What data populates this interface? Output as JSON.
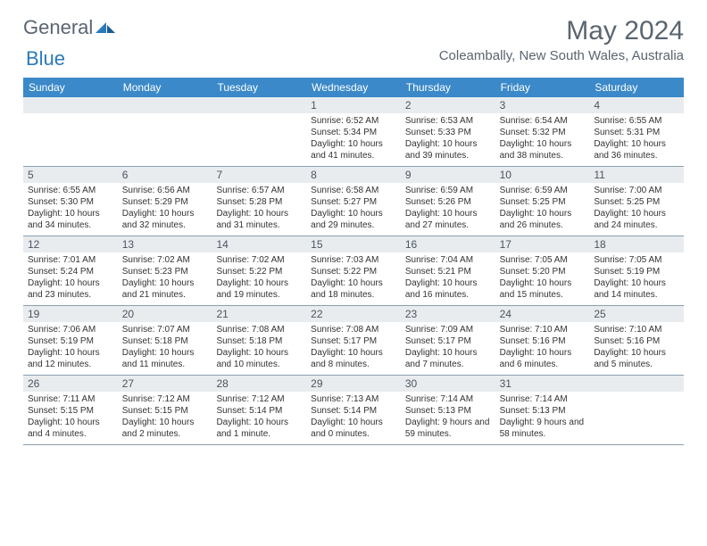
{
  "logo": {
    "text1": "General",
    "text2": "Blue"
  },
  "title": "May 2024",
  "location": "Coleambally, New South Wales, Australia",
  "colors": {
    "header_bg": "#3b89c9",
    "header_text": "#ffffff",
    "date_bg": "#e9ecef",
    "border": "#8aa0b0",
    "text_muted": "#5a6570"
  },
  "day_names": [
    "Sunday",
    "Monday",
    "Tuesday",
    "Wednesday",
    "Thursday",
    "Friday",
    "Saturday"
  ],
  "weeks": [
    [
      null,
      null,
      null,
      {
        "n": "1",
        "sr": "6:52 AM",
        "ss": "5:34 PM",
        "dl": "10 hours and 41 minutes."
      },
      {
        "n": "2",
        "sr": "6:53 AM",
        "ss": "5:33 PM",
        "dl": "10 hours and 39 minutes."
      },
      {
        "n": "3",
        "sr": "6:54 AM",
        "ss": "5:32 PM",
        "dl": "10 hours and 38 minutes."
      },
      {
        "n": "4",
        "sr": "6:55 AM",
        "ss": "5:31 PM",
        "dl": "10 hours and 36 minutes."
      }
    ],
    [
      {
        "n": "5",
        "sr": "6:55 AM",
        "ss": "5:30 PM",
        "dl": "10 hours and 34 minutes."
      },
      {
        "n": "6",
        "sr": "6:56 AM",
        "ss": "5:29 PM",
        "dl": "10 hours and 32 minutes."
      },
      {
        "n": "7",
        "sr": "6:57 AM",
        "ss": "5:28 PM",
        "dl": "10 hours and 31 minutes."
      },
      {
        "n": "8",
        "sr": "6:58 AM",
        "ss": "5:27 PM",
        "dl": "10 hours and 29 minutes."
      },
      {
        "n": "9",
        "sr": "6:59 AM",
        "ss": "5:26 PM",
        "dl": "10 hours and 27 minutes."
      },
      {
        "n": "10",
        "sr": "6:59 AM",
        "ss": "5:25 PM",
        "dl": "10 hours and 26 minutes."
      },
      {
        "n": "11",
        "sr": "7:00 AM",
        "ss": "5:25 PM",
        "dl": "10 hours and 24 minutes."
      }
    ],
    [
      {
        "n": "12",
        "sr": "7:01 AM",
        "ss": "5:24 PM",
        "dl": "10 hours and 23 minutes."
      },
      {
        "n": "13",
        "sr": "7:02 AM",
        "ss": "5:23 PM",
        "dl": "10 hours and 21 minutes."
      },
      {
        "n": "14",
        "sr": "7:02 AM",
        "ss": "5:22 PM",
        "dl": "10 hours and 19 minutes."
      },
      {
        "n": "15",
        "sr": "7:03 AM",
        "ss": "5:22 PM",
        "dl": "10 hours and 18 minutes."
      },
      {
        "n": "16",
        "sr": "7:04 AM",
        "ss": "5:21 PM",
        "dl": "10 hours and 16 minutes."
      },
      {
        "n": "17",
        "sr": "7:05 AM",
        "ss": "5:20 PM",
        "dl": "10 hours and 15 minutes."
      },
      {
        "n": "18",
        "sr": "7:05 AM",
        "ss": "5:19 PM",
        "dl": "10 hours and 14 minutes."
      }
    ],
    [
      {
        "n": "19",
        "sr": "7:06 AM",
        "ss": "5:19 PM",
        "dl": "10 hours and 12 minutes."
      },
      {
        "n": "20",
        "sr": "7:07 AM",
        "ss": "5:18 PM",
        "dl": "10 hours and 11 minutes."
      },
      {
        "n": "21",
        "sr": "7:08 AM",
        "ss": "5:18 PM",
        "dl": "10 hours and 10 minutes."
      },
      {
        "n": "22",
        "sr": "7:08 AM",
        "ss": "5:17 PM",
        "dl": "10 hours and 8 minutes."
      },
      {
        "n": "23",
        "sr": "7:09 AM",
        "ss": "5:17 PM",
        "dl": "10 hours and 7 minutes."
      },
      {
        "n": "24",
        "sr": "7:10 AM",
        "ss": "5:16 PM",
        "dl": "10 hours and 6 minutes."
      },
      {
        "n": "25",
        "sr": "7:10 AM",
        "ss": "5:16 PM",
        "dl": "10 hours and 5 minutes."
      }
    ],
    [
      {
        "n": "26",
        "sr": "7:11 AM",
        "ss": "5:15 PM",
        "dl": "10 hours and 4 minutes."
      },
      {
        "n": "27",
        "sr": "7:12 AM",
        "ss": "5:15 PM",
        "dl": "10 hours and 2 minutes."
      },
      {
        "n": "28",
        "sr": "7:12 AM",
        "ss": "5:14 PM",
        "dl": "10 hours and 1 minute."
      },
      {
        "n": "29",
        "sr": "7:13 AM",
        "ss": "5:14 PM",
        "dl": "10 hours and 0 minutes."
      },
      {
        "n": "30",
        "sr": "7:14 AM",
        "ss": "5:13 PM",
        "dl": "9 hours and 59 minutes."
      },
      {
        "n": "31",
        "sr": "7:14 AM",
        "ss": "5:13 PM",
        "dl": "9 hours and 58 minutes."
      },
      null
    ]
  ],
  "labels": {
    "sunrise": "Sunrise: ",
    "sunset": "Sunset: ",
    "daylight": "Daylight: "
  }
}
